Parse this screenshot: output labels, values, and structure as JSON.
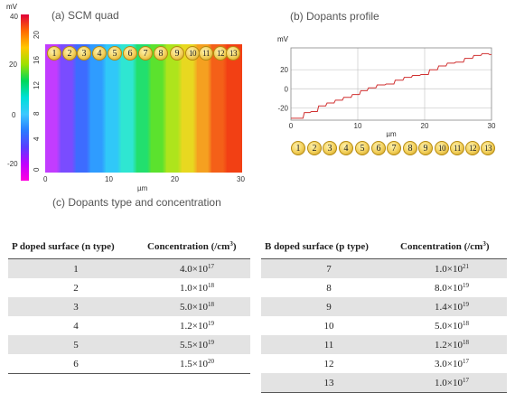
{
  "panel_a": {
    "title": "(a) SCM quad",
    "colorbar": {
      "unit": "mV",
      "ticks": [
        "40",
        "20",
        "0",
        "-20"
      ],
      "colors": [
        "#e0003a",
        "#ff6a00",
        "#ffc800",
        "#9de000",
        "#00d85a",
        "#00e0d8",
        "#3cc8ff",
        "#2a7aff",
        "#5a3cff",
        "#c000ff",
        "#ff00e0"
      ]
    },
    "y_ticks": [
      "20",
      "16",
      "12",
      "8",
      "4",
      "0"
    ],
    "x_ticks": [
      "0",
      "10",
      "20",
      "30"
    ],
    "x_label": "µm",
    "region_labels": [
      "1",
      "2",
      "3",
      "4",
      "5",
      "6",
      "7",
      "8",
      "9",
      "10",
      "11",
      "12",
      "13"
    ],
    "band_colors": [
      "#c23cff",
      "#7a4cff",
      "#3d6cff",
      "#2f9cff",
      "#30c8f8",
      "#2fe6d2",
      "#22df6e",
      "#5be22e",
      "#aee41c",
      "#e8d820",
      "#f5a020",
      "#f46018",
      "#f24014"
    ]
  },
  "panel_b": {
    "title": "(b) Dopants profile",
    "unit": "mV",
    "y_ticks": [
      "20",
      "0",
      "-20"
    ],
    "x_ticks": [
      "0",
      "10",
      "20",
      "30"
    ],
    "x_label": "µm",
    "line_color": "#d03030",
    "region_labels": [
      "1",
      "2",
      "3",
      "4",
      "5",
      "6",
      "7",
      "8",
      "9",
      "10",
      "11",
      "12",
      "13"
    ]
  },
  "panel_c": {
    "title": "(c) Dopants type and concentration"
  },
  "chart_data": {
    "type": "line",
    "title": "(b) Dopants profile",
    "xlabel": "µm",
    "ylabel": "mV",
    "xlim": [
      0,
      30
    ],
    "ylim": [
      -33,
      43
    ],
    "grid": true,
    "series": [
      {
        "x": [
          0,
          1.2,
          2.4,
          3.3,
          4.6,
          5.8,
          7.1,
          8.3,
          9.7,
          10.8,
          12.0,
          13.4,
          14.7,
          16.1,
          17.4,
          18.6,
          19.9,
          21.2,
          22.6,
          23.8,
          25.1,
          26.5,
          27.8,
          29.0,
          30
        ],
        "y": [
          -31,
          -31,
          -25,
          -24,
          -18,
          -15,
          -12,
          -9,
          -6,
          -2,
          1,
          4,
          5,
          9,
          12,
          14,
          15,
          20,
          24,
          27,
          28,
          32,
          35,
          37,
          36
        ]
      }
    ]
  },
  "table_p": {
    "headers": [
      "P doped surface (n type)",
      "Concentration  (/cm",
      "3",
      ")"
    ],
    "rows": [
      {
        "id": "1",
        "mant": "4.0×10",
        "exp": "17"
      },
      {
        "id": "2",
        "mant": "1.0×10",
        "exp": "18"
      },
      {
        "id": "3",
        "mant": "5.0×10",
        "exp": "18"
      },
      {
        "id": "4",
        "mant": "1.2×10",
        "exp": "19"
      },
      {
        "id": "5",
        "mant": "5.5×10",
        "exp": "19"
      },
      {
        "id": "6",
        "mant": "1.5×10",
        "exp": "20"
      }
    ]
  },
  "table_b": {
    "headers": [
      "B doped surface (p type)",
      "Concentration  (/cm",
      "3",
      ")"
    ],
    "rows": [
      {
        "id": "7",
        "mant": "1.0×10",
        "exp": "21"
      },
      {
        "id": "8",
        "mant": "8.0×10",
        "exp": "19"
      },
      {
        "id": "9",
        "mant": "1.4×10",
        "exp": "19"
      },
      {
        "id": "10",
        "mant": "5.0×10",
        "exp": "18"
      },
      {
        "id": "11",
        "mant": "1.2×10",
        "exp": "18"
      },
      {
        "id": "12",
        "mant": "3.0×10",
        "exp": "17"
      },
      {
        "id": "13",
        "mant": "1.0×10",
        "exp": "17"
      }
    ]
  }
}
